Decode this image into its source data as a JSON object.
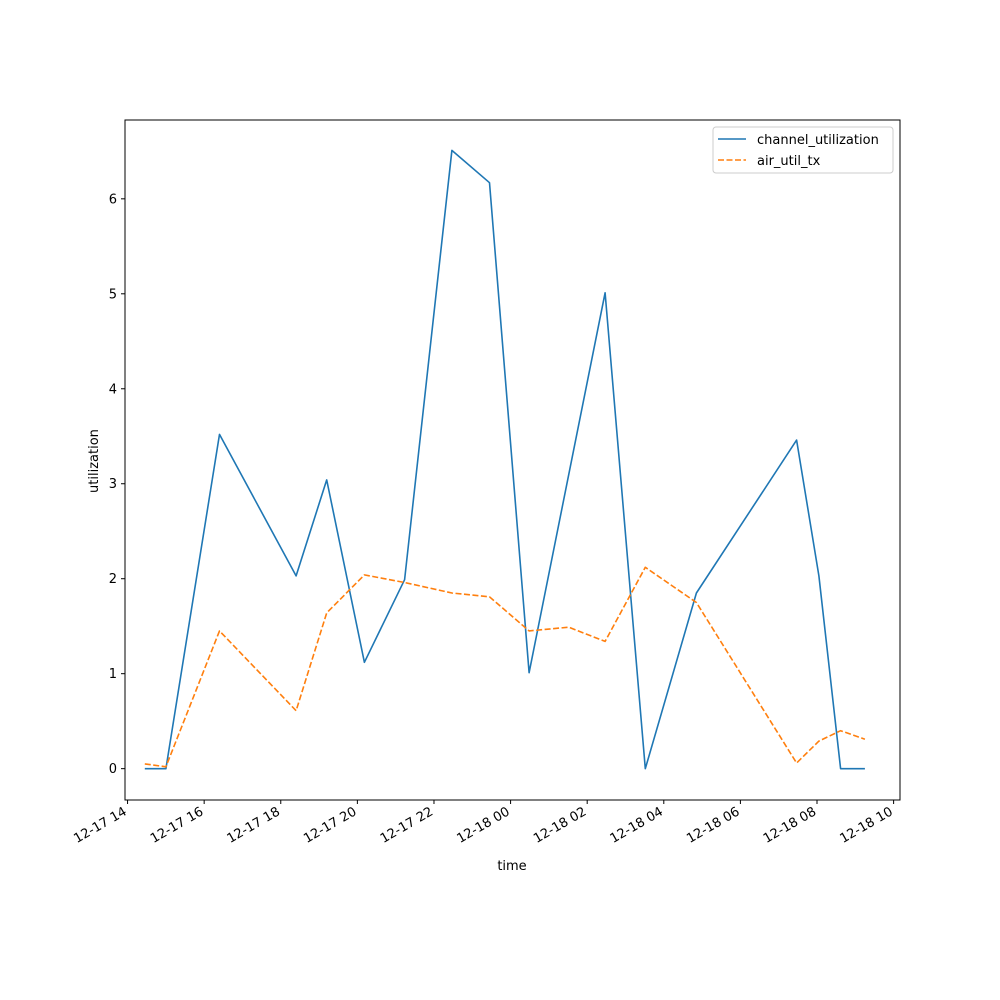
{
  "chart_data": {
    "type": "line",
    "title": "",
    "xlabel": "time",
    "ylabel": "utilization",
    "x_axis_type": "datetime",
    "x_ticks": [
      "12-17 14",
      "12-17 16",
      "12-17 18",
      "12-17 20",
      "12-17 22",
      "12-18 00",
      "12-18 02",
      "12-18 04",
      "12-18 06",
      "12-18 08",
      "12-18 10"
    ],
    "y_ticks": [
      0,
      1,
      2,
      3,
      4,
      5,
      6
    ],
    "ylim": [
      -0.33,
      6.83
    ],
    "xlim": [
      "2023-12-17T13:56",
      "2023-12-18T10:10"
    ],
    "legend": "top-right",
    "grid": false,
    "series": [
      {
        "name": "channel_utilization",
        "style": "solid",
        "color": "#1f77b4",
        "points": [
          [
            "2023-12-17T14:27",
            0.0
          ],
          [
            "2023-12-17T15:00",
            0.0
          ],
          [
            "2023-12-17T16:24",
            3.52
          ],
          [
            "2023-12-17T18:24",
            2.03
          ],
          [
            "2023-12-17T19:12",
            3.04
          ],
          [
            "2023-12-17T20:11",
            1.12
          ],
          [
            "2023-12-17T21:14",
            1.99
          ],
          [
            "2023-12-17T22:28",
            6.51
          ],
          [
            "2023-12-17T23:27",
            6.17
          ],
          [
            "2023-12-18T00:29",
            1.01
          ],
          [
            "2023-12-18T02:28",
            5.01
          ],
          [
            "2023-12-18T03:31",
            0.0
          ],
          [
            "2023-12-18T04:51",
            1.85
          ],
          [
            "2023-12-18T07:28",
            3.46
          ],
          [
            "2023-12-18T08:03",
            2.03
          ],
          [
            "2023-12-18T08:37",
            0.0
          ],
          [
            "2023-12-18T09:15",
            0.0
          ]
        ]
      },
      {
        "name": "air_util_tx",
        "style": "dashed",
        "color": "#ff7f0e",
        "points": [
          [
            "2023-12-17T14:27",
            0.05
          ],
          [
            "2023-12-17T15:00",
            0.02
          ],
          [
            "2023-12-17T16:24",
            1.45
          ],
          [
            "2023-12-17T18:24",
            0.61
          ],
          [
            "2023-12-17T19:12",
            1.64
          ],
          [
            "2023-12-17T20:11",
            2.04
          ],
          [
            "2023-12-17T21:14",
            1.96
          ],
          [
            "2023-12-17T22:28",
            1.85
          ],
          [
            "2023-12-17T23:27",
            1.81
          ],
          [
            "2023-12-18T00:29",
            1.45
          ],
          [
            "2023-12-18T01:31",
            1.49
          ],
          [
            "2023-12-18T02:28",
            1.34
          ],
          [
            "2023-12-18T03:31",
            2.12
          ],
          [
            "2023-12-18T04:51",
            1.75
          ],
          [
            "2023-12-18T07:28",
            0.06
          ],
          [
            "2023-12-18T08:03",
            0.29
          ],
          [
            "2023-12-18T08:37",
            0.4
          ],
          [
            "2023-12-18T09:15",
            0.31
          ]
        ]
      }
    ]
  }
}
